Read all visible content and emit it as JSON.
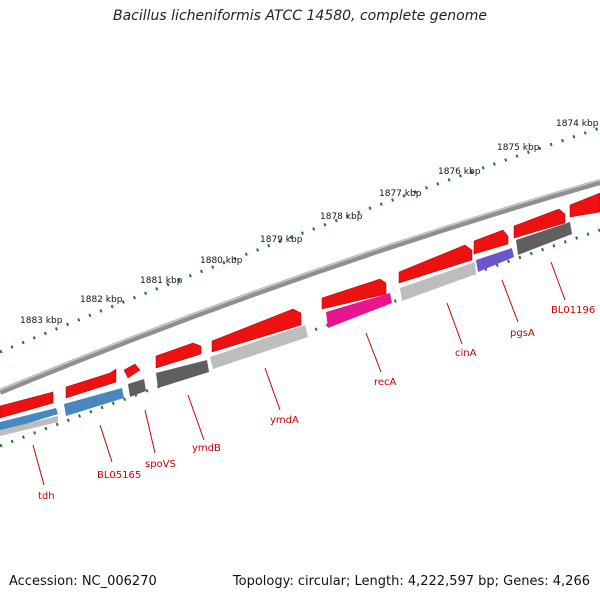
{
  "title": "Bacillus licheniformis ATCC 14580, complete genome",
  "footer": {
    "accession": "Accession: NC_006270",
    "summary": "Topology: circular; Length: 4,222,597 bp; Genes: 4,266"
  },
  "colors": {
    "background": "#ffffff",
    "backbone": "#8f8f8f",
    "forward_gene": "#ee1111",
    "tick": "#1a7a1a",
    "label": "#cc0000",
    "steelblue": "#4a86bf",
    "darkgrey": "#5f5f5f",
    "lightgrey": "#bdbdbd",
    "magenta": "#e8158f",
    "purple": "#6a55cc"
  },
  "scale_labels": [
    "1874 kbp",
    "1875 kbp",
    "1876 kbp",
    "1877 kbp",
    "1878 kbp",
    "1879 kbp",
    "1880 kbp",
    "1881 kbp",
    "1882 kbp",
    "1883 kbp"
  ],
  "gene_labels": [
    "tdh",
    "BL05165",
    "spoVS",
    "ymdB",
    "ymdA",
    "recA",
    "cinA",
    "pgsA",
    "BL01196"
  ]
}
